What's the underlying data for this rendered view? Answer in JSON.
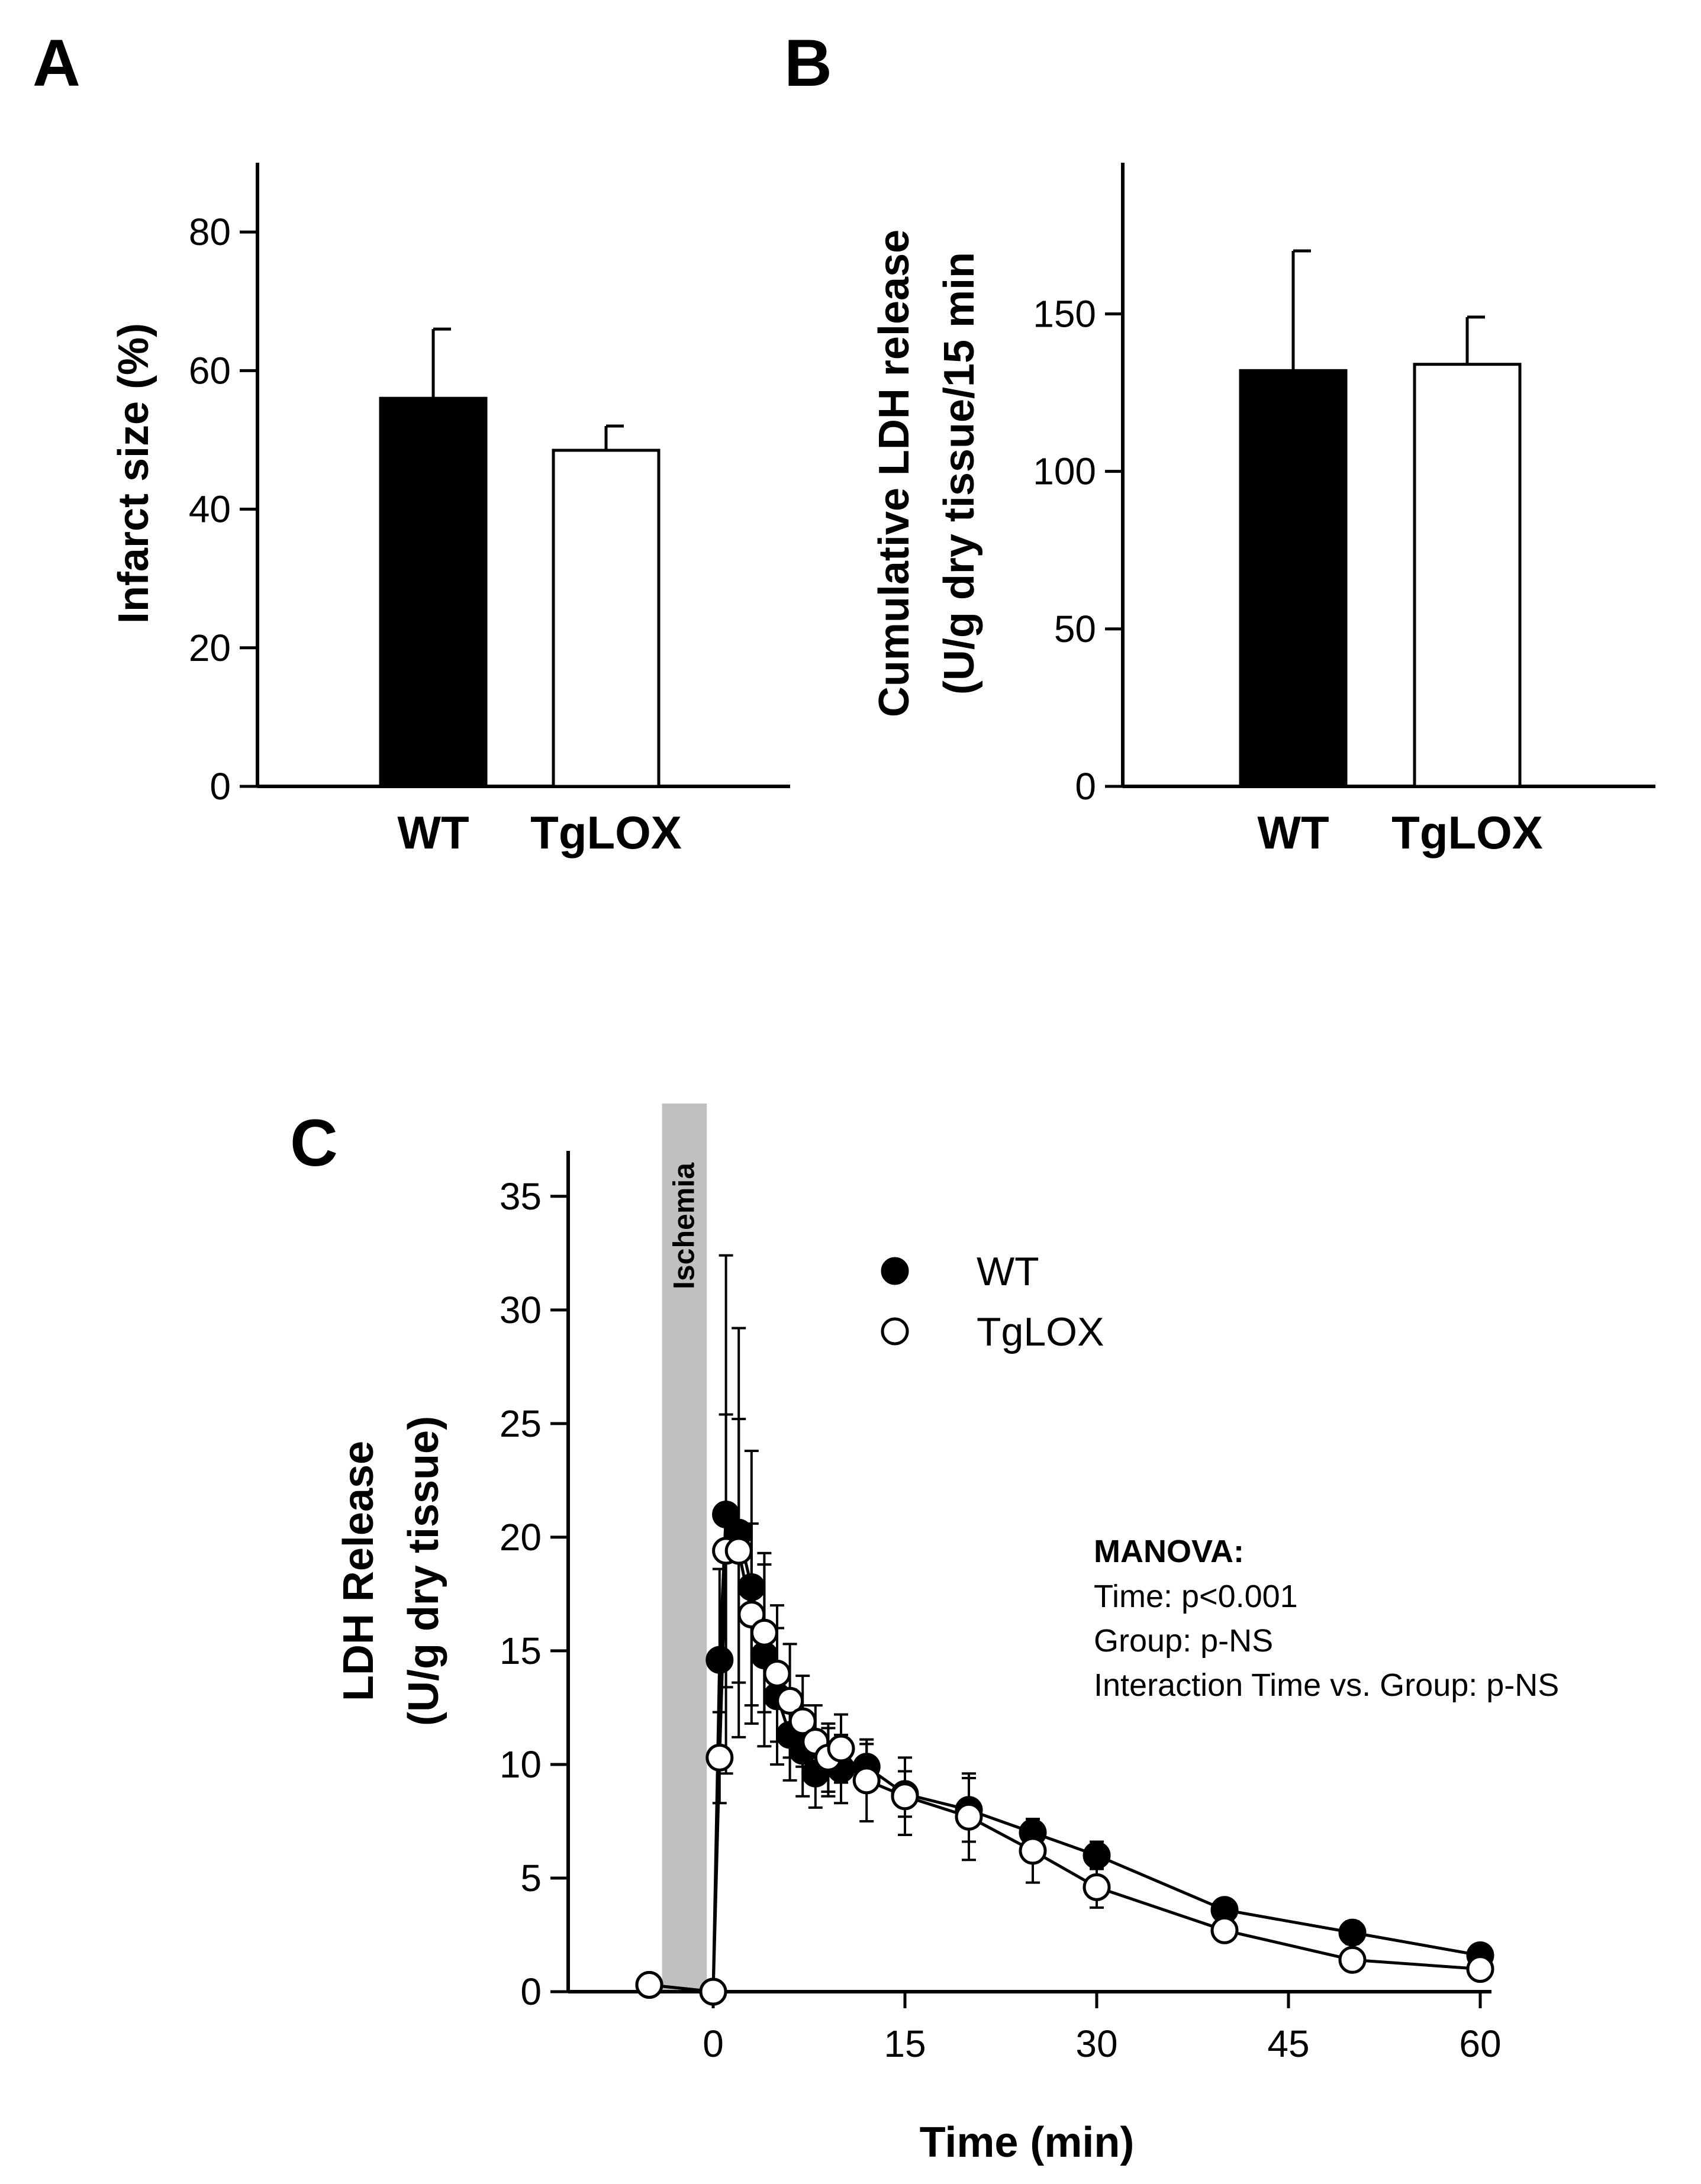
{
  "chart_data": [
    {
      "panel": "A",
      "type": "bar",
      "categories": [
        "WT",
        "TgLOX"
      ],
      "values": [
        56,
        48.5
      ],
      "errors": [
        10,
        3.5
      ],
      "fills": [
        "#000000",
        "#ffffff"
      ],
      "ylabel": "Infarct size (%)",
      "ylim": [
        0,
        90
      ],
      "yticks": [
        0,
        20,
        40,
        60,
        80
      ],
      "ytick_labels": [
        "0",
        "20",
        "40",
        "60",
        "80"
      ]
    },
    {
      "panel": "B",
      "type": "bar",
      "categories": [
        "WT",
        "TgLOX"
      ],
      "values": [
        132,
        134
      ],
      "errors": [
        38,
        15
      ],
      "fills": [
        "#000000",
        "#ffffff"
      ],
      "ylabel_line1": "Cumulative LDH release",
      "ylabel_line2": "(U/g dry tissue/15 min",
      "ylim": [
        0,
        198
      ],
      "yticks": [
        0,
        50,
        100,
        150
      ],
      "ytick_labels": [
        "0",
        "50",
        "100",
        "150"
      ]
    },
    {
      "panel": "C",
      "type": "line",
      "xlabel": "Time (min)",
      "ylabel_line1": "LDH Release",
      "ylabel_line2": "(U/g dry tissue)",
      "xlim": [
        -11,
        61
      ],
      "ylim": [
        0,
        37
      ],
      "xticks": [
        0,
        15,
        30,
        45,
        60
      ],
      "xtick_labels": [
        "0",
        "15",
        "30",
        "45",
        "60"
      ],
      "yticks": [
        0,
        5,
        10,
        15,
        20,
        25,
        30,
        35
      ],
      "ytick_labels": [
        "0",
        "5",
        "10",
        "15",
        "20",
        "25",
        "30",
        "35"
      ],
      "shaded_region": {
        "x": [
          -4,
          -0.5
        ],
        "label": "Ischemia",
        "color": "#c0c0c0"
      },
      "series": [
        {
          "name": "WT",
          "marker": "filled",
          "x": [
            -5,
            0,
            0.5,
            1,
            2,
            3,
            4,
            5,
            6,
            7,
            8,
            9,
            10,
            12,
            15,
            20,
            25,
            30,
            40,
            50,
            60
          ],
          "y": [
            0.3,
            0,
            14.6,
            21,
            20.2,
            17.8,
            14.8,
            13,
            11.3,
            10.6,
            9.6,
            10.1,
            9.8,
            9.9,
            8.7,
            8,
            7,
            6,
            3.6,
            2.6,
            1.6
          ],
          "err": [
            0.2,
            0,
            4,
            11.4,
            9,
            6,
            4,
            3,
            2,
            2,
            1.5,
            1.5,
            1.5,
            1,
            1,
            1.4,
            0.6,
            0.6,
            0.4,
            0.5,
            0.3
          ]
        },
        {
          "name": "TgLOX",
          "marker": "open",
          "x": [
            -5,
            0,
            0.5,
            1,
            2,
            3,
            4,
            5,
            6,
            7,
            8,
            9,
            10,
            12,
            15,
            20,
            25,
            30,
            40,
            50,
            60
          ],
          "y": [
            0.3,
            0,
            10.3,
            19.4,
            19.4,
            16.6,
            15.8,
            14,
            12.8,
            11.9,
            11,
            10.3,
            10.7,
            9.3,
            8.6,
            7.7,
            6.2,
            4.6,
            2.7,
            1.4,
            1
          ],
          "err": [
            0.2,
            0,
            2,
            6,
            5.8,
            4,
            3.5,
            3,
            2.5,
            2,
            1.6,
            1.5,
            1.5,
            1.8,
            1.7,
            1.9,
            1.4,
            0.9,
            0.4,
            0.3,
            0.3
          ]
        }
      ],
      "legend": [
        {
          "label": "WT",
          "marker": "filled"
        },
        {
          "label": "TgLOX",
          "marker": "open"
        }
      ],
      "annotation": {
        "title": "MANOVA:",
        "lines": [
          "Time: p<0.001",
          "Group: p-NS",
          "Interaction Time vs. Group: p-NS"
        ]
      }
    }
  ]
}
